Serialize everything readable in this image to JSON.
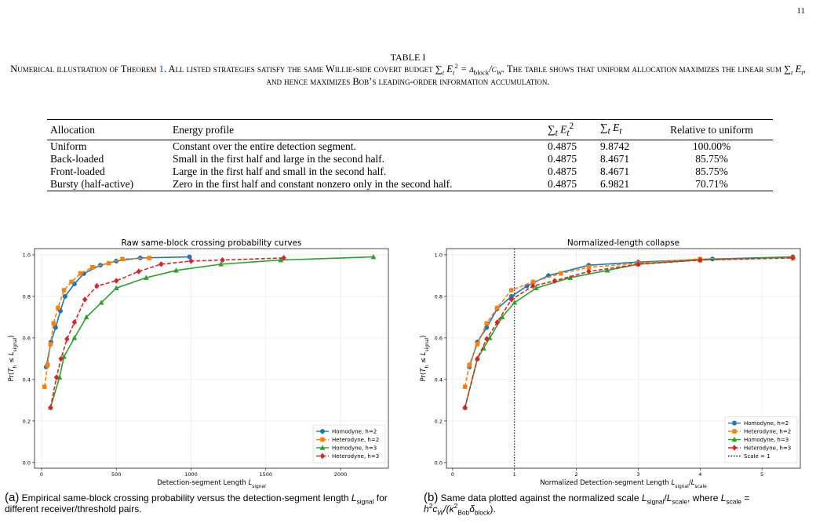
{
  "page_number": "11",
  "table": {
    "label": "TABLE I",
    "caption": [
      {
        "t": "Numerical illustration of Theorem "
      },
      {
        "t": "1",
        "link": true
      },
      {
        "t": ". All listed strategies satisfy the same Willie-side covert budget ∑"
      },
      {
        "t": "t",
        "sub": true,
        "i": true
      },
      {
        "t": " E",
        "i": true
      },
      {
        "t": "t",
        "sub": true,
        "i": true
      },
      {
        "t": "2",
        "sup": true
      },
      {
        "t": " = δ",
        "i": true
      },
      {
        "t": "block",
        "sub": true
      },
      {
        "t": "/c",
        "i": true
      },
      {
        "t": "W",
        "sub": true,
        "i": true
      },
      {
        "t": ". The table shows that uniform allocation maximizes the linear sum ∑"
      },
      {
        "t": "t",
        "sub": true,
        "i": true
      },
      {
        "t": " E",
        "i": true
      },
      {
        "t": "t",
        "sub": true,
        "i": true
      },
      {
        "t": ", and hence maximizes Bob’s leading-order information accumulation."
      }
    ],
    "header": [
      "Allocation",
      "Energy profile",
      [
        {
          "t": "∑"
        },
        {
          "t": "t",
          "sub": true,
          "i": true
        },
        {
          "t": " E",
          "i": true
        },
        {
          "t": "t",
          "sub": true,
          "i": true
        },
        {
          "t": "2",
          "sup": true
        }
      ],
      [
        {
          "t": "∑"
        },
        {
          "t": "t",
          "sub": true,
          "i": true
        },
        {
          "t": " E",
          "i": true
        },
        {
          "t": "t",
          "sub": true,
          "i": true
        }
      ],
      "Relative to uniform"
    ],
    "rows": [
      [
        "Uniform",
        "Constant over the entire detection segment.",
        0.4875,
        9.8742,
        "100.00%"
      ],
      [
        "Back-loaded",
        "Small in the first half and large in the second half.",
        0.4875,
        8.4671,
        "85.75%"
      ],
      [
        "Front-loaded",
        "Large in the first half and small in the second half.",
        0.4875,
        8.4671,
        "85.75%"
      ],
      [
        "Bursty (half-active)",
        "Zero in the first half and constant nonzero only in the second half.",
        0.4875,
        6.9821,
        "70.71%"
      ]
    ]
  },
  "chart_data": [
    {
      "type": "line",
      "title": "Raw same-block crossing probability curves",
      "xlabel": [
        {
          "t": "Detection-segment Length "
        },
        {
          "t": "L",
          "i": true
        },
        {
          "t": "signal",
          "sub": true
        }
      ],
      "ylabel": [
        {
          "t": "Pr("
        },
        {
          "t": "T",
          "i": true
        },
        {
          "t": "h",
          "sub": true
        },
        {
          "t": " ≤ "
        },
        {
          "t": "L",
          "i": true
        },
        {
          "t": "signal",
          "sub": true
        },
        {
          "t": ")"
        }
      ],
      "xlim": [
        -47,
        2320
      ],
      "ylim": [
        -0.027,
        1.03
      ],
      "xticks": [
        0,
        500,
        1000,
        1500,
        2000
      ],
      "yticks": [
        {
          "value": 0,
          "label": "0.0"
        },
        0.2,
        0.4,
        0.6,
        0.8,
        {
          "value": 1,
          "label": "1.0"
        }
      ],
      "grid": true,
      "legend": "lower right",
      "series": [
        {
          "name": "Homodyne, h=2",
          "color": "#1f77b4",
          "marker": "circle",
          "linestyle": "solid",
          "x": [
            31,
            63,
            94,
            126,
            157,
            220,
            283,
            393,
            500,
            660,
            990
          ],
          "y": [
            0.46,
            0.58,
            0.65,
            0.73,
            0.8,
            0.86,
            0.91,
            0.95,
            0.97,
            0.985,
            0.99
          ]
        },
        {
          "name": "Heterodyne, h=2",
          "color": "#ff7f0e",
          "marker": "square",
          "linestyle": "dashed",
          "x": [
            20,
            40,
            60,
            80,
            110,
            150,
            200,
            260,
            340,
            450,
            540,
            720
          ],
          "y": [
            0.365,
            0.47,
            0.57,
            0.67,
            0.745,
            0.83,
            0.87,
            0.91,
            0.94,
            0.96,
            0.98,
            0.985
          ]
        },
        {
          "name": "Homodyne, h=3",
          "color": "#2ca02c",
          "marker": "triangle",
          "linestyle": "solid",
          "x": [
            60,
            120,
            150,
            220,
            300,
            400,
            500,
            700,
            900,
            1200,
            1600,
            2220
          ],
          "y": [
            0.265,
            0.41,
            0.51,
            0.6,
            0.7,
            0.77,
            0.84,
            0.89,
            0.925,
            0.955,
            0.975,
            0.99
          ]
        },
        {
          "name": "Heterodyne, h=3",
          "color": "#d62728",
          "marker": "diamond",
          "linestyle": "dashed",
          "x": [
            60,
            100,
            130,
            170,
            220,
            290,
            370,
            500,
            650,
            800,
            1000,
            1210,
            1620
          ],
          "y": [
            0.265,
            0.41,
            0.5,
            0.595,
            0.675,
            0.785,
            0.85,
            0.875,
            0.92,
            0.955,
            0.97,
            0.975,
            0.985
          ]
        }
      ]
    },
    {
      "type": "line",
      "title": "Normalized-length collapse",
      "xlabel": [
        {
          "t": "Normalized Detection-segment Length "
        },
        {
          "t": "L",
          "i": true
        },
        {
          "t": "signal",
          "sub": true
        },
        {
          "t": "/"
        },
        {
          "t": "L",
          "i": true
        },
        {
          "t": "scale",
          "sub": true
        }
      ],
      "ylabel": [
        {
          "t": "Pr("
        },
        {
          "t": "T",
          "i": true
        },
        {
          "t": "h",
          "sub": true
        },
        {
          "t": " ≤ "
        },
        {
          "t": "L",
          "i": true
        },
        {
          "t": "signal",
          "sub": true
        },
        {
          "t": ")"
        }
      ],
      "xlim": [
        -0.1,
        5.62
      ],
      "ylim": [
        -0.027,
        1.03
      ],
      "xticks": [
        0,
        1,
        2,
        3,
        4,
        5
      ],
      "yticks": [
        {
          "value": 0,
          "label": "0.0"
        },
        0.2,
        0.4,
        0.6,
        0.8,
        {
          "value": 1,
          "label": "1.0"
        }
      ],
      "grid": true,
      "legend": "lower right",
      "series": [
        {
          "name": "Homodyne, h=2",
          "color": "#1f77b4",
          "marker": "circle",
          "linestyle": "solid",
          "x": [
            0.27,
            0.4,
            0.55,
            0.72,
            0.95,
            1.2,
            1.55,
            2.2,
            3.0,
            4.2,
            5.5
          ],
          "y": [
            0.46,
            0.58,
            0.65,
            0.74,
            0.8,
            0.85,
            0.9,
            0.95,
            0.965,
            0.98,
            0.99
          ]
        },
        {
          "name": "Heterodyne, h=2",
          "color": "#ff7f0e",
          "marker": "square",
          "linestyle": "dashed",
          "x": [
            0.2,
            0.27,
            0.4,
            0.55,
            0.72,
            0.95,
            1.3,
            1.75,
            2.2,
            3.0,
            4.0,
            5.5
          ],
          "y": [
            0.365,
            0.47,
            0.57,
            0.67,
            0.745,
            0.83,
            0.87,
            0.91,
            0.94,
            0.96,
            0.98,
            0.985
          ]
        },
        {
          "name": "Homodyne, h=3",
          "color": "#2ca02c",
          "marker": "triangle",
          "linestyle": "solid",
          "x": [
            0.2,
            0.4,
            0.5,
            0.6,
            0.8,
            1.0,
            1.35,
            1.9,
            2.5,
            3.0,
            4.0,
            5.5
          ],
          "y": [
            0.265,
            0.5,
            0.55,
            0.6,
            0.7,
            0.77,
            0.84,
            0.89,
            0.925,
            0.955,
            0.975,
            0.99
          ]
        },
        {
          "name": "Heterodyne, h=3",
          "color": "#d62728",
          "marker": "diamond",
          "linestyle": "dashed",
          "x": [
            0.2,
            0.4,
            0.55,
            0.72,
            0.95,
            1.3,
            1.65,
            2.2,
            3.0,
            4.0,
            5.5
          ],
          "y": [
            0.265,
            0.5,
            0.595,
            0.675,
            0.785,
            0.85,
            0.875,
            0.92,
            0.955,
            0.975,
            0.985
          ]
        }
      ],
      "vline": {
        "x": 1,
        "name": "Scale = 1",
        "color": "#000000",
        "linestyle": "dotted"
      }
    }
  ],
  "subcaptions": [
    [
      {
        "t": "(a)"
      },
      {
        "t": " Empirical same-block crossing probability versus the detection-segment length "
      },
      {
        "t": "L",
        "i": true
      },
      {
        "t": "signal",
        "sub": true
      },
      {
        "t": " for different receiver/threshold pairs."
      }
    ],
    [
      {
        "t": "(b)"
      },
      {
        "t": " Same data plotted against the normalized scale "
      },
      {
        "t": "L",
        "i": true
      },
      {
        "t": "signal",
        "sub": true
      },
      {
        "t": "/"
      },
      {
        "t": "L",
        "i": true
      },
      {
        "t": "scale",
        "sub": true
      },
      {
        "t": ", where "
      },
      {
        "t": "L",
        "i": true
      },
      {
        "t": "scale",
        "sub": true
      },
      {
        "t": " = h",
        "i": true
      },
      {
        "t": "2",
        "sup": true
      },
      {
        "t": "c",
        "i": true
      },
      {
        "t": "W",
        "sub": true,
        "i": true
      },
      {
        "t": "/(κ",
        "i": true
      },
      {
        "t": "2",
        "sup": true
      },
      {
        "t": "Bob",
        "sub": true
      },
      {
        "t": "δ",
        "i": true
      },
      {
        "t": "block",
        "sub": true
      },
      {
        "t": ")."
      }
    ]
  ]
}
